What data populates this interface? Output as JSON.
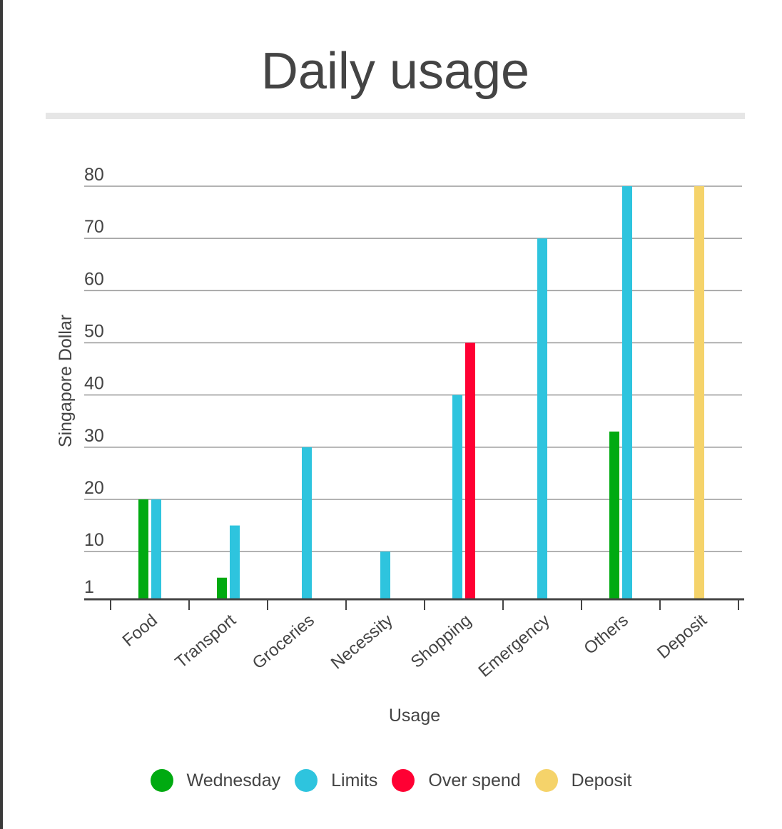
{
  "chart_data": {
    "type": "bar",
    "title": "Daily usage",
    "xlabel": "Usage",
    "ylabel": "Singapore Dollar",
    "categories": [
      "Food",
      "Transport",
      "Groceries",
      "Necessity",
      "Shopping",
      "Emergency",
      "Others",
      "Deposit"
    ],
    "yticks": [
      "1",
      "10",
      "20",
      "30",
      "40",
      "50",
      "60",
      "70",
      "80"
    ],
    "ylim": [
      1,
      80
    ],
    "grid": true,
    "legend_position": "bottom",
    "series": [
      {
        "name": "Wednesday",
        "color": "#00aa11",
        "values": [
          20,
          5,
          null,
          null,
          null,
          null,
          33,
          null
        ]
      },
      {
        "name": "Limits",
        "color": "#2ec4de",
        "values": [
          20,
          15,
          30,
          10,
          40,
          70,
          80,
          null
        ]
      },
      {
        "name": "Over spend",
        "color": "#ff0033",
        "values": [
          null,
          null,
          null,
          null,
          50,
          null,
          null,
          null
        ]
      },
      {
        "name": "Deposit",
        "color": "#f5d36a",
        "values": [
          null,
          null,
          null,
          null,
          null,
          null,
          null,
          80
        ]
      }
    ]
  }
}
